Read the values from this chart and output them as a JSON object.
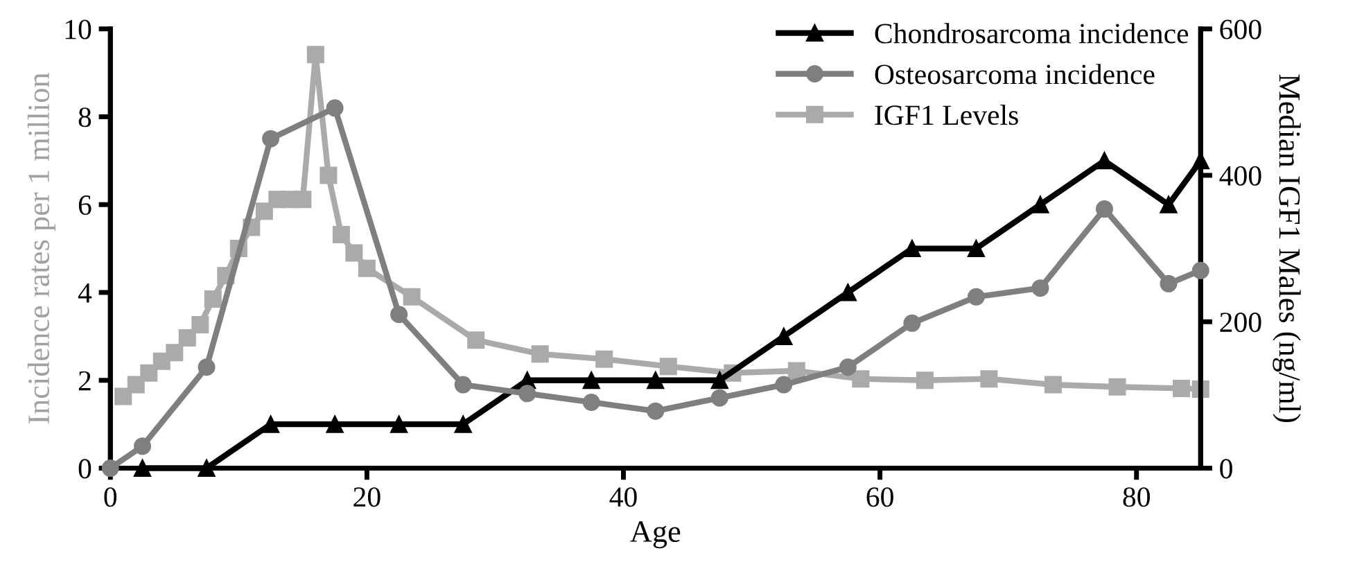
{
  "chart_data": {
    "type": "line",
    "xlabel": "Age",
    "ylabel": "Incidence rates per 1 million",
    "y2label": "Median IGF1 Males (ng/ml)",
    "xlim": [
      0,
      85
    ],
    "xticks": [
      0,
      20,
      40,
      60,
      80
    ],
    "ylim": [
      0,
      10
    ],
    "yticks": [
      0,
      2,
      4,
      6,
      8,
      10
    ],
    "y2lim": [
      0,
      600
    ],
    "y2ticks": [
      0,
      200,
      400,
      600
    ],
    "grid": false,
    "legend": "top right",
    "line_style": "solid",
    "series": [
      {
        "name": "Chondrosarcoma incidence",
        "color": "#000000",
        "marker": "triangle",
        "x": [
          2.5,
          7.5,
          12.5,
          17.5,
          22.5,
          27.5,
          32.5,
          37.5,
          42.5,
          47.5,
          52.5,
          57.5,
          62.5,
          67.5,
          72.5,
          77.5,
          82.5,
          85
        ],
        "values": [
          0,
          0,
          1,
          1,
          1,
          1,
          2,
          2,
          2,
          2,
          3,
          4,
          5,
          5,
          6,
          7,
          6,
          7
        ]
      },
      {
        "name": "Osteosarcoma incidence",
        "color": "#7f7f7f",
        "marker": "circle",
        "x": [
          0,
          2.5,
          7.5,
          12.5,
          17.5,
          22.5,
          27.5,
          32.5,
          37.5,
          42.5,
          47.5,
          52.5,
          57.5,
          62.5,
          67.5,
          72.5,
          77.5,
          82.5,
          85
        ],
        "values": [
          0,
          0.5,
          2.3,
          7.5,
          8.2,
          3.5,
          1.9,
          1.7,
          1.5,
          1.3,
          1.6,
          1.9,
          2.3,
          3.3,
          3.9,
          4.1,
          5.9,
          4.2,
          4.5
        ]
      },
      {
        "name": "IGF1 Levels",
        "color": "#aaaaaa",
        "marker": "square",
        "axis": "y2",
        "x": [
          1,
          2,
          3,
          4,
          5,
          6,
          7,
          8,
          9,
          10,
          11,
          12,
          13,
          14,
          15,
          16,
          17,
          18,
          19,
          20,
          23.5,
          28.5,
          33.5,
          38.5,
          43.5,
          48.5,
          53.5,
          58.5,
          63.5,
          68.5,
          73.5,
          78.5,
          83.5,
          85
        ],
        "values": [
          98,
          114,
          130,
          146,
          158,
          178,
          196,
          231,
          263,
          300,
          329,
          351,
          367,
          367,
          367,
          565,
          400,
          319,
          294,
          273,
          234,
          175,
          156,
          149,
          139,
          130,
          133,
          122,
          120,
          122,
          114,
          111,
          109,
          108
        ]
      }
    ]
  }
}
